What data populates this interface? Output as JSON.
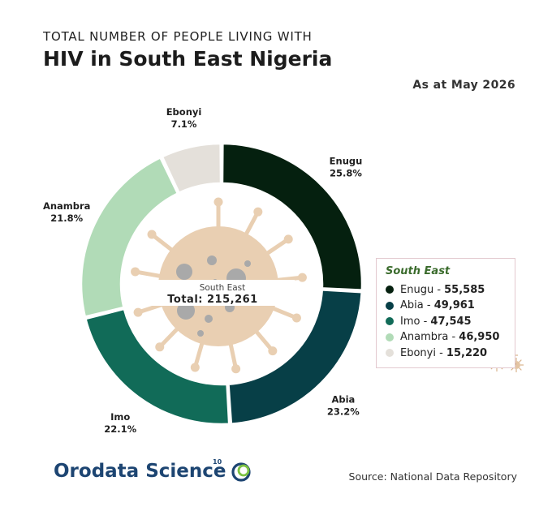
{
  "header": {
    "pre_title": "TOTAL NUMBER OF PEOPLE LIVING WITH",
    "title": "HIV in South East Nigeria",
    "date": "As at May 2026"
  },
  "center": {
    "region": "South East",
    "total_label": "Total: 215,261"
  },
  "legend": {
    "title": "South East",
    "items": [
      {
        "name": "Enugu",
        "value": "55,585"
      },
      {
        "name": "Abia",
        "value": "49,961"
      },
      {
        "name": "Imo",
        "value": "47,545"
      },
      {
        "name": "Anambra",
        "value": "46,950"
      },
      {
        "name": "Ebonyi",
        "value": "15,220"
      }
    ]
  },
  "chart_data": {
    "type": "pie",
    "variant": "donut",
    "total": 215261,
    "slices": [
      {
        "label": "Enugu",
        "value": 55585,
        "percent_label": "25.8%",
        "color": "#05200f"
      },
      {
        "label": "Abia",
        "value": 49961,
        "percent_label": "23.2%",
        "color": "#073f47"
      },
      {
        "label": "Imo",
        "value": 47545,
        "percent_label": "22.1%",
        "color": "#116b58"
      },
      {
        "label": "Anambra",
        "value": 46950,
        "percent_label": "21.8%",
        "color": "#b1dbb7"
      },
      {
        "label": "Ebonyi",
        "value": 15220,
        "percent_label": "7.1%",
        "color": "#e4e0da"
      }
    ],
    "start": "top",
    "direction": "clockwise",
    "legend_position": "right"
  },
  "decoration": {
    "virus_color": "#e9cfb2",
    "virus_spot_color": "#a9a9a9"
  },
  "footer": {
    "logo_text": "Orodata Science",
    "logo_sup": "10",
    "source": "Source: National Data Repository"
  }
}
